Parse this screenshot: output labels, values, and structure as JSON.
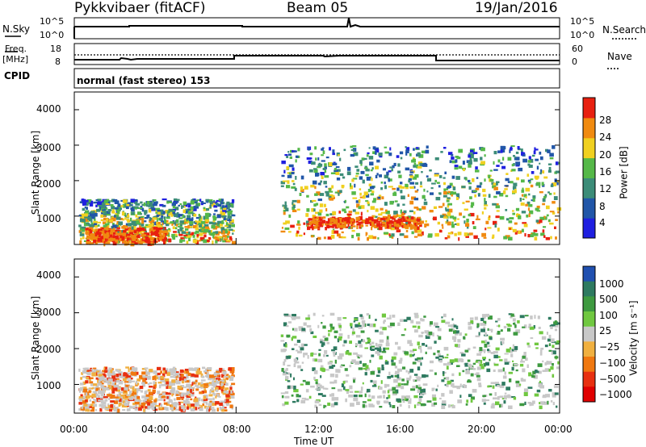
{
  "header": {
    "station": "Pykkvibaer (fitACF)",
    "beam": "Beam 05",
    "date": "19/Jan/2016"
  },
  "top_panels": {
    "nsky_label": "N.Sky",
    "nsky_ticks": [
      "10^5",
      "10^0"
    ],
    "nsearch_label": "N.Search",
    "nsearch_ticks": [
      "10^5",
      "10^0"
    ],
    "freq_label_1": "Freq.",
    "freq_label_2": "[MHz]",
    "freq_ticks": [
      "18",
      "8"
    ],
    "nave_label": "Nave",
    "nave_ticks": [
      "60",
      "0"
    ],
    "cpid_label": "CPID",
    "cpid_value": "normal (fast stereo) 153"
  },
  "chart_data": [
    {
      "type": "heatmap",
      "name": "power",
      "ylabel": "Slant Range [km]",
      "yticks": [
        "1000",
        "2000",
        "3000",
        "4000"
      ],
      "ylim": [
        200,
        4500
      ],
      "xlim": [
        0,
        24
      ],
      "colorbar_label": "Power [dB]",
      "colorbar_ticks": [
        "4",
        "8",
        "12",
        "16",
        "20",
        "24",
        "28"
      ],
      "colorbar_colors": [
        "#1f1fe0",
        "#2156a8",
        "#3c8c78",
        "#55b848",
        "#f0d020",
        "#f08a10",
        "#e82010"
      ],
      "echo_regions": [
        {
          "t0": 0.2,
          "t1": 7.8,
          "r0": 300,
          "r1": 1500,
          "level": "mixed"
        },
        {
          "t0": 0.5,
          "t1": 4.5,
          "r0": 250,
          "r1": 700,
          "level": "high"
        },
        {
          "t0": 10.2,
          "t1": 23.9,
          "r0": 400,
          "r1": 3000,
          "level": "mixed"
        },
        {
          "t0": 11.5,
          "t1": 17.0,
          "r0": 700,
          "r1": 1000,
          "level": "high"
        }
      ]
    },
    {
      "type": "heatmap",
      "name": "velocity",
      "ylabel": "Slant Range [km]",
      "yticks": [
        "1000",
        "2000",
        "3000",
        "4000"
      ],
      "ylim": [
        200,
        4500
      ],
      "xlim": [
        0,
        24
      ],
      "colorbar_label": "Velocity [m s⁻¹]",
      "colorbar_ticks": [
        "1000",
        "500",
        "100",
        "25",
        "−25",
        "−100",
        "−500",
        "−1000"
      ],
      "colorbar_colors": [
        "#2050b0",
        "#2e7a60",
        "#3e9a40",
        "#70c840",
        "#c8c8c8",
        "#f0b040",
        "#f07810",
        "#e83010",
        "#e00000"
      ],
      "echo_regions": [
        {
          "t0": 0.2,
          "t1": 7.8,
          "r0": 300,
          "r1": 1500,
          "level": "mixed"
        },
        {
          "t0": 10.2,
          "t1": 23.9,
          "r0": 400,
          "r1": 3000,
          "level": "mixed"
        }
      ]
    }
  ],
  "x_axis": {
    "ticks": [
      "00:00",
      "04:00",
      "08:00",
      "12:00",
      "16:00",
      "20:00",
      "00:00"
    ],
    "label": "Time UT"
  }
}
